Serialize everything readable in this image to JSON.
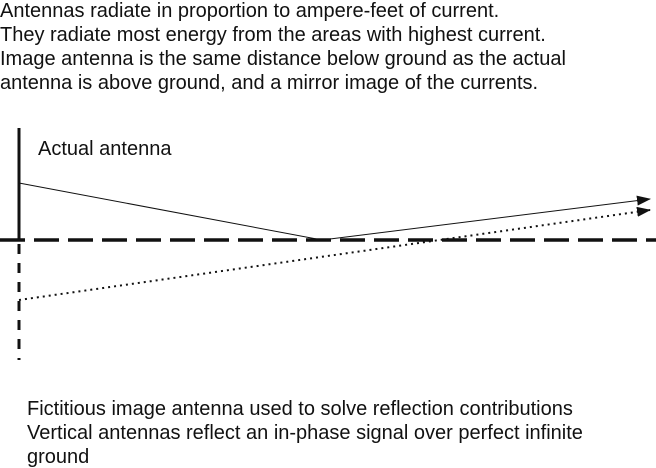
{
  "intro": {
    "lines": [
      "Antennas radiate in proportion to ampere-feet of current.",
      "They radiate most energy from the areas with highest current.",
      "Image antenna is the same distance below ground as the actual",
      "antenna is above ground, and a mirror image of the currents."
    ]
  },
  "diagram": {
    "actual_label": "Actual antenna"
  },
  "caption": {
    "lines": [
      "Fictitious image antenna used to solve reflection contributions",
      "Vertical antennas reflect an in-phase signal over perfect infinite",
      "ground"
    ]
  }
}
